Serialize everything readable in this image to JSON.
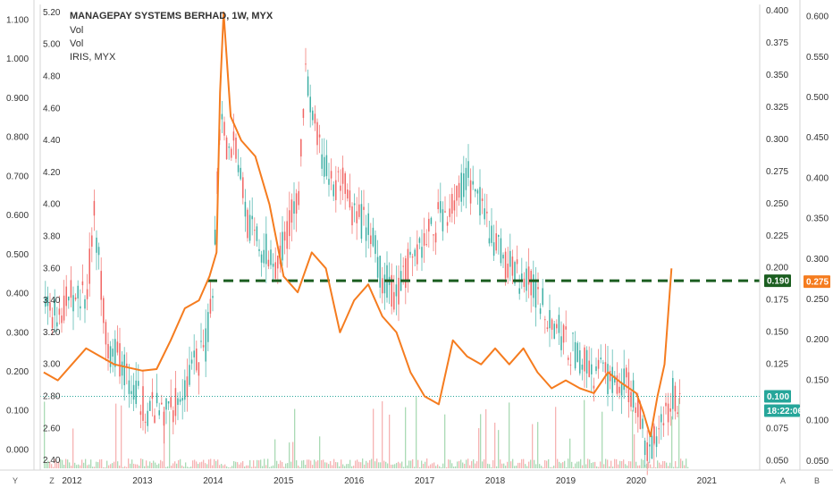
{
  "chart_data": {
    "type": "line",
    "legend": {
      "title": "MANAGEPAY SYSTEMS BERHAD, 1W, MYX",
      "lines": [
        "Vol",
        "Vol",
        "IRIS, MYX"
      ]
    },
    "x_ticks": [
      "2012",
      "2013",
      "2014",
      "2015",
      "2016",
      "2017",
      "2018",
      "2019",
      "2020",
      "2021"
    ],
    "axis_far_left": {
      "ticks": [
        "1.100",
        "1.000",
        "0.900",
        "0.800",
        "0.700",
        "0.600",
        "0.500",
        "0.400",
        "0.300",
        "0.200",
        "0.100",
        "0.000"
      ],
      "ylim": [
        -0.047,
        1.14
      ]
    },
    "axis_left": {
      "ticks": [
        "5.20",
        "5.00",
        "4.80",
        "4.60",
        "4.40",
        "4.20",
        "4.00",
        "3.80",
        "3.60",
        "3.40",
        "3.20",
        "3.00",
        "2.80",
        "2.60",
        "2.40"
      ],
      "ylim": [
        2.35,
        5.25
      ]
    },
    "axis_right": {
      "ticks": [
        "0.400",
        "0.375",
        "0.350",
        "0.325",
        "0.300",
        "0.275",
        "0.250",
        "0.225",
        "0.200",
        "0.175",
        "0.150",
        "0.125",
        "0.100",
        "0.075",
        "0.050"
      ],
      "ylim": [
        0.044,
        0.405
      ]
    },
    "axis_far_right": {
      "ticks": [
        "0.600",
        "0.550",
        "0.500",
        "0.450",
        "0.400",
        "0.350",
        "0.300",
        "0.250",
        "0.200",
        "0.150",
        "0.100",
        "0.050"
      ],
      "ylim": [
        0.041,
        0.615
      ]
    },
    "series": [
      {
        "name": "MANAGEPAY SYSTEMS BERHAD",
        "style": "candles",
        "axis": "right",
        "colors": {
          "up": "#26a69a",
          "down": "#ef5350"
        },
        "x": [
          2011.6,
          2011.8,
          2012.0,
          2012.2,
          2012.3,
          2012.5,
          2012.7,
          2012.9,
          2013.1,
          2013.3,
          2013.5,
          2013.7,
          2013.9,
          2014.0,
          2014.1,
          2014.2,
          2014.3,
          2014.5,
          2014.7,
          2014.9,
          2015.0,
          2015.2,
          2015.3,
          2015.5,
          2015.7,
          2015.8,
          2016.0,
          2016.2,
          2016.4,
          2016.6,
          2016.8,
          2017.0,
          2017.2,
          2017.4,
          2017.6,
          2017.8,
          2018.0,
          2018.2,
          2018.4,
          2018.6,
          2018.8,
          2019.0,
          2019.2,
          2019.4,
          2019.6,
          2019.8,
          2020.0,
          2020.1,
          2020.2,
          2020.3,
          2020.4,
          2020.5
        ],
        "y": [
          0.17,
          0.165,
          0.18,
          0.175,
          0.24,
          0.14,
          0.125,
          0.1,
          0.09,
          0.085,
          0.1,
          0.12,
          0.14,
          0.2,
          0.33,
          0.29,
          0.3,
          0.23,
          0.215,
          0.205,
          0.22,
          0.26,
          0.35,
          0.29,
          0.26,
          0.27,
          0.24,
          0.23,
          0.19,
          0.18,
          0.21,
          0.22,
          0.24,
          0.25,
          0.27,
          0.245,
          0.22,
          0.2,
          0.19,
          0.18,
          0.16,
          0.14,
          0.13,
          0.12,
          0.115,
          0.11,
          0.1,
          0.06,
          0.06,
          0.08,
          0.09,
          0.1
        ]
      },
      {
        "name": "IRIS, MYX",
        "style": "line",
        "axis": "left",
        "color": "#f57c1f",
        "x": [
          2011.6,
          2011.8,
          2012.0,
          2012.2,
          2012.4,
          2012.6,
          2012.8,
          2013.0,
          2013.2,
          2013.4,
          2013.6,
          2013.8,
          2013.95,
          2014.05,
          2014.1,
          2014.15,
          2014.25,
          2014.4,
          2014.6,
          2014.8,
          2015.0,
          2015.2,
          2015.4,
          2015.6,
          2015.8,
          2016.0,
          2016.2,
          2016.4,
          2016.6,
          2016.8,
          2017.0,
          2017.2,
          2017.4,
          2017.6,
          2017.8,
          2018.0,
          2018.2,
          2018.4,
          2018.6,
          2018.8,
          2019.0,
          2019.2,
          2019.4,
          2019.6,
          2019.8,
          2020.0,
          2020.1,
          2020.2,
          2020.3,
          2020.4,
          2020.5
        ],
        "y": [
          2.95,
          2.9,
          3.0,
          3.1,
          3.05,
          3.0,
          2.98,
          2.96,
          2.97,
          3.15,
          3.35,
          3.4,
          3.55,
          3.7,
          4.7,
          5.2,
          4.55,
          4.4,
          4.3,
          4.0,
          3.55,
          3.45,
          3.7,
          3.6,
          3.2,
          3.4,
          3.5,
          3.3,
          3.2,
          2.95,
          2.8,
          2.75,
          3.15,
          3.05,
          3.0,
          3.1,
          3.0,
          3.1,
          2.95,
          2.85,
          2.9,
          2.85,
          2.82,
          2.95,
          2.88,
          2.82,
          2.7,
          2.55,
          2.8,
          3.0,
          3.6
        ]
      },
      {
        "name": "Vol",
        "style": "bars",
        "color": "#9bd3a8"
      },
      {
        "name": "Vol",
        "style": "bars",
        "color": "#f4a6a6"
      }
    ],
    "levels": [
      {
        "value": 0.19,
        "label": "0.190",
        "axis": "right",
        "color": "#1b5e20",
        "style": "dashed"
      },
      {
        "value": 0.1,
        "label": "0.100",
        "axis": "right",
        "color": "#26a69a",
        "style": "dotted"
      }
    ],
    "price_tags": [
      {
        "label": "0.190",
        "color": "#1b5e20"
      },
      {
        "label": "0.100",
        "color": "#26a69a"
      },
      {
        "label": "18:22:06",
        "color": "#26a69a"
      },
      {
        "label": "0.275",
        "color": "#f57c1f"
      }
    ],
    "corner_labels": {
      "bottom_left_1": "Y",
      "bottom_left_2": "Z",
      "bottom_right_1": "A",
      "bottom_right_2": "B"
    }
  }
}
